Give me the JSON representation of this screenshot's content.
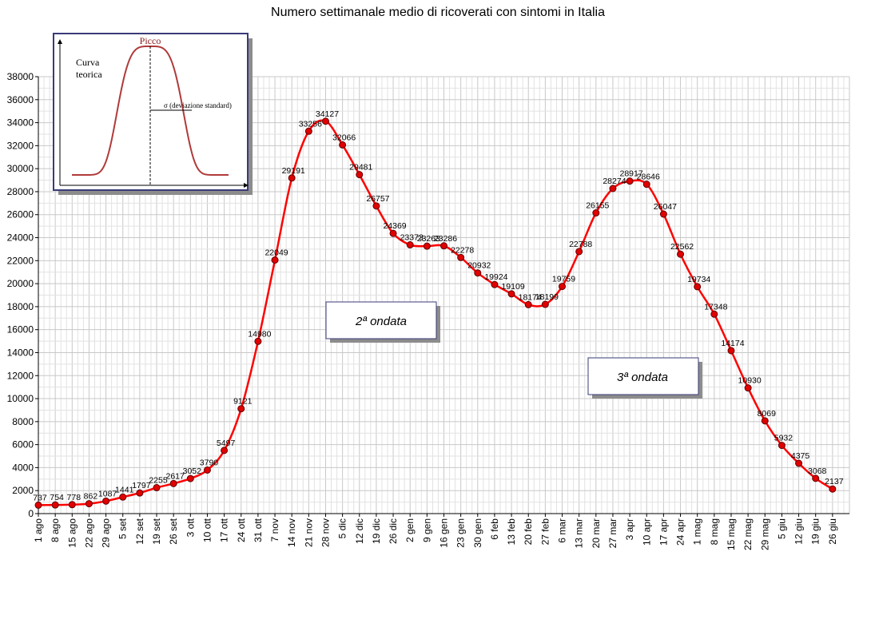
{
  "chart_data": {
    "type": "line",
    "title": "Numero settimanale medio di ricoverati con sintomi in Italia",
    "xlabel": "",
    "ylabel": "",
    "ylim": [
      0,
      38000
    ],
    "ytick_step": 2000,
    "grid": true,
    "categories": [
      "1 ago",
      "8 ago",
      "15 ago",
      "22 ago",
      "29 ago",
      "5 set",
      "12 set",
      "19 set",
      "26 set",
      "3 ott",
      "10 ott",
      "17 ott",
      "24 ott",
      "31 ott",
      "7 nov",
      "14 nov",
      "21 nov",
      "28 nov",
      "5 dic",
      "12 dic",
      "19 dic",
      "26 dic",
      "2 gen",
      "9 gen",
      "16 gen",
      "23 gen",
      "30 gen",
      "6 feb",
      "13 feb",
      "20 feb",
      "27 feb",
      "6 mar",
      "13 mar",
      "20 mar",
      "27 mar",
      "3 apr",
      "10 apr",
      "17 apr",
      "24 apr",
      "1 mag",
      "8 mag",
      "15 mag",
      "22 mag",
      "29 mag",
      "5 giu",
      "12 giu",
      "19 giu",
      "26 giu"
    ],
    "series": [
      {
        "color": "#ff0000",
        "marker_color": "#e00000",
        "values": [
          737,
          754,
          778,
          862,
          1087,
          1441,
          1797,
          2255,
          2617,
          3052,
          3790,
          5497,
          9121,
          14980,
          22049,
          29191,
          33256,
          34127,
          32066,
          29481,
          26757,
          24369,
          23373,
          23263,
          23286,
          22278,
          20932,
          19924,
          19109,
          18174,
          18199,
          19759,
          22788,
          26155,
          28274,
          28917,
          28646,
          26047,
          22562,
          19734,
          17348,
          14174,
          10930,
          8069,
          5932,
          4375,
          3068,
          2137
        ]
      }
    ],
    "annotations": [
      {
        "text": "2ª ondata"
      },
      {
        "text": "3ª ondata"
      }
    ],
    "inset": {
      "peak_label": "Picco",
      "curve_label_line1": "Curva",
      "curve_label_line2": "teorica",
      "sigma_label": "σ  (deviazione standard)"
    }
  }
}
